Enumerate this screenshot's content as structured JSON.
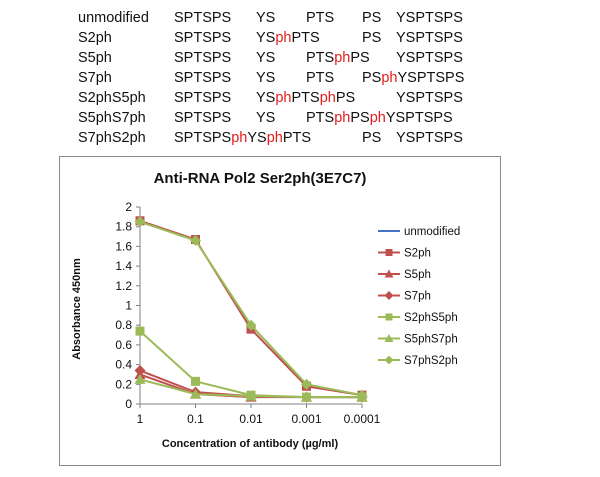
{
  "sequence_table": {
    "rows": [
      {
        "name": "unmodified",
        "segments": [
          "SPTSPS",
          "YS",
          "PTS",
          "PS",
          "YSPTSPS"
        ]
      },
      {
        "name": "S2ph",
        "segments": [
          "SPTSPS",
          "YS[ph]PTS",
          "",
          "PS",
          "YSPTSPS"
        ]
      },
      {
        "name": "S5ph",
        "segments": [
          "SPTSPS",
          "YS",
          "PTS[ph]PS",
          "",
          "YSPTSPS"
        ]
      },
      {
        "name": "S7ph",
        "segments": [
          "SPTSPS",
          "YS",
          "PTS",
          "PS[ph]YSPTSPS",
          ""
        ]
      },
      {
        "name": "S2phS5ph",
        "segments": [
          "SPTSPS",
          "YS[ph]PTS[ph]PS",
          "",
          "",
          "YSPTSPS"
        ]
      },
      {
        "name": "S5phS7ph",
        "segments": [
          "SPTSPS",
          "YS",
          "PTS[ph]PS[ph]YSPTSPS",
          "",
          ""
        ]
      },
      {
        "name": "S7phS2ph",
        "segments": [
          "SPTSPS[ph]YS[ph]PTS",
          "",
          "",
          "PS",
          "YSPTSPS"
        ]
      }
    ],
    "highlight_color": "#e41b1b"
  },
  "chart_data": {
    "type": "line",
    "title": "Anti-RNA Pol2 Ser2ph(3E7C7)",
    "xlabel": "Concentration of antibody (µg/ml)",
    "ylabel": "Absorbance 450nm",
    "categories": [
      "1",
      "0.1",
      "0.01",
      "0.001",
      "0.0001"
    ],
    "yticks": [
      "0",
      "0.2",
      "0.4",
      "0.6",
      "0.8",
      "1",
      "1.2",
      "1.4",
      "1.6",
      "1.8",
      "2"
    ],
    "ylim": [
      0,
      2
    ],
    "grid": false,
    "legend_position": "right",
    "series": [
      {
        "name": "unmodified",
        "color": "#4472c4",
        "marker": "none",
        "values": null
      },
      {
        "name": "S2ph",
        "color": "#c0504d",
        "marker": "square",
        "values": [
          1.86,
          1.67,
          0.76,
          0.18,
          0.09
        ]
      },
      {
        "name": "S5ph",
        "color": "#c0504d",
        "marker": "triangle",
        "values": [
          0.3,
          0.1,
          0.07,
          0.07,
          0.07
        ]
      },
      {
        "name": "S7ph",
        "color": "#c0504d",
        "marker": "diamond",
        "values": [
          0.34,
          0.12,
          0.08,
          0.07,
          0.07
        ]
      },
      {
        "name": "S2phS5ph",
        "color": "#9bbb59",
        "marker": "square",
        "values": [
          0.74,
          0.23,
          0.09,
          0.07,
          0.07
        ]
      },
      {
        "name": "S5phS7ph",
        "color": "#9bbb59",
        "marker": "triangle",
        "values": [
          0.25,
          0.1,
          0.08,
          0.07,
          0.07
        ]
      },
      {
        "name": "S7phS2ph",
        "color": "#9bbb59",
        "marker": "diamond",
        "values": [
          1.85,
          1.66,
          0.8,
          0.2,
          0.09
        ]
      }
    ]
  }
}
